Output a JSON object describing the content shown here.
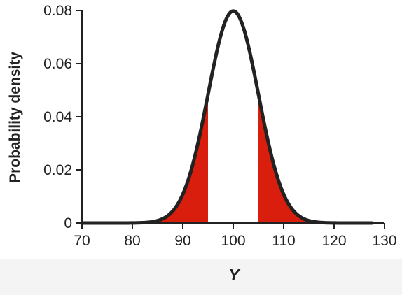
{
  "chart_data": {
    "type": "line",
    "title": "",
    "xlabel": "Y",
    "ylabel": "Probability density",
    "xlim": [
      70,
      130
    ],
    "ylim": [
      0,
      0.08
    ],
    "xticks": [
      70,
      80,
      90,
      100,
      110,
      120,
      130
    ],
    "yticks": [
      0,
      0.02,
      0.04,
      0.06,
      0.08
    ],
    "xtick_labels": [
      "70",
      "80",
      "90",
      "100",
      "110",
      "120",
      "130"
    ],
    "ytick_labels": [
      "0",
      "0.02",
      "0.04",
      "0.06",
      "0.08"
    ],
    "grid": false,
    "series": [
      {
        "distribution": "normal",
        "mean": 100,
        "sd": 5,
        "x_range": [
          70,
          127.5
        ],
        "color": "#222222"
      }
    ],
    "shaded_regions": [
      {
        "from": 70,
        "to": 95,
        "color": "#d91e0e"
      },
      {
        "from": 105,
        "to": 127.5,
        "color": "#d91e0e"
      }
    ]
  }
}
